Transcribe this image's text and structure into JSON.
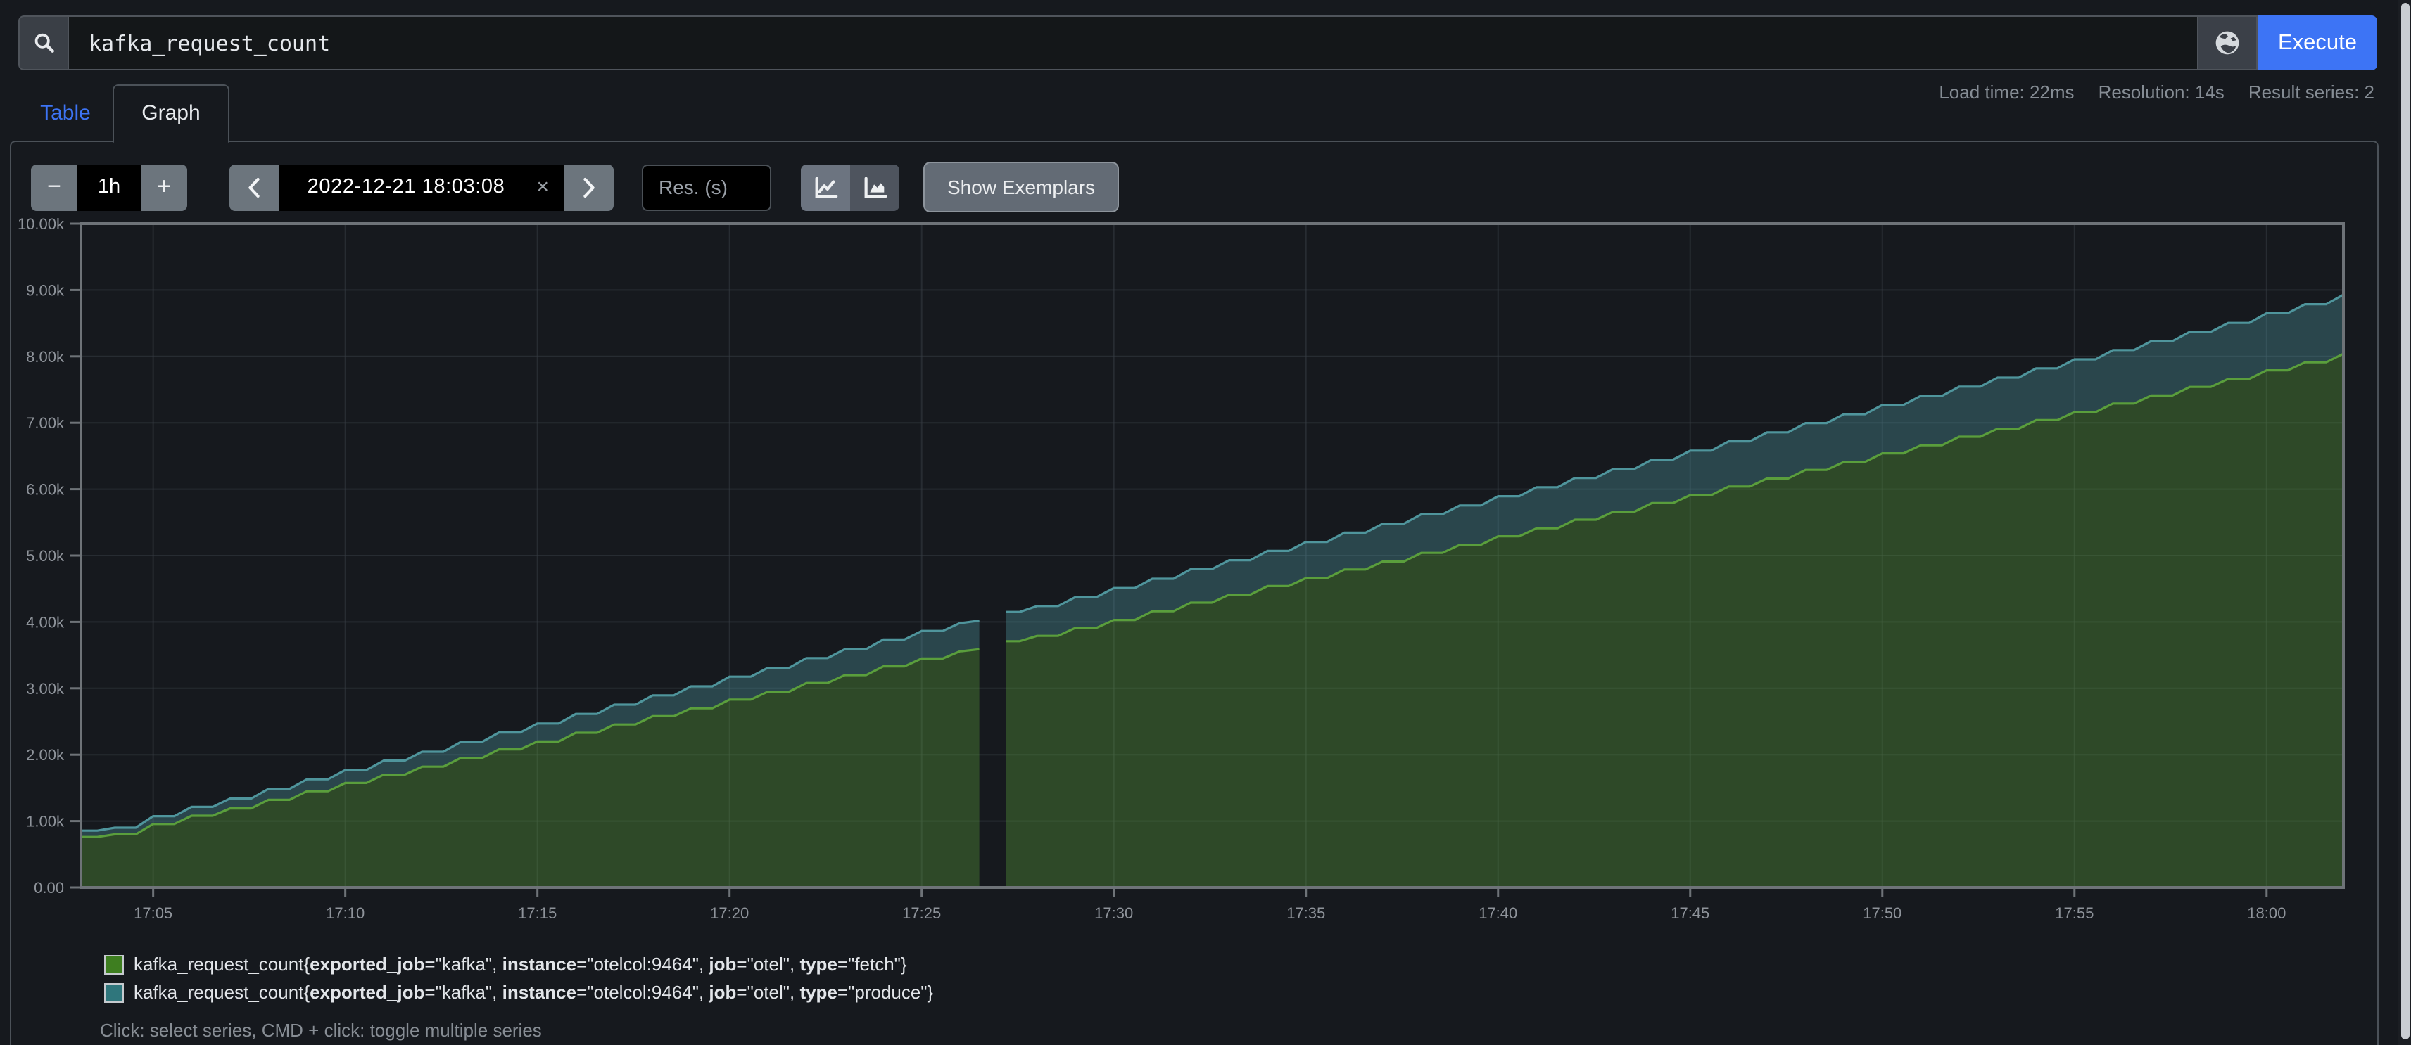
{
  "query_bar": {
    "query": "kafka_request_count",
    "execute": "Execute"
  },
  "stats": {
    "load_time": "Load time: 22ms",
    "resolution": "Resolution: 14s",
    "result_series": "Result series: 2"
  },
  "tabs": {
    "table": "Table",
    "graph": "Graph"
  },
  "toolbar": {
    "duration": {
      "decrease": "−",
      "value": "1h",
      "increase": "+"
    },
    "time": {
      "value": "2022-12-21 18:03:08",
      "clear": "×"
    },
    "resolution_placeholder": "Res. (s)",
    "show_exemplars": "Show Exemplars"
  },
  "theme": {
    "accent": "#3d74f5",
    "background": "#16191e",
    "panel_border": "#4b5158"
  },
  "chart_data": {
    "type": "area",
    "stacked": true,
    "title": "",
    "xlabel": "",
    "ylabel": "",
    "grid": true,
    "legend_position": "bottom",
    "grid_color": "#373c43",
    "border_color": "#6e7378",
    "axis_text_color": "#8e939a",
    "x_unit": "clock minutes since 00:00",
    "x_axis": {
      "min": 1023.12,
      "max": 1082.0,
      "ticks": [
        {
          "m": 1025,
          "label": "17:05"
        },
        {
          "m": 1030,
          "label": "17:10"
        },
        {
          "m": 1035,
          "label": "17:15"
        },
        {
          "m": 1040,
          "label": "17:20"
        },
        {
          "m": 1045,
          "label": "17:25"
        },
        {
          "m": 1050,
          "label": "17:30"
        },
        {
          "m": 1055,
          "label": "17:35"
        },
        {
          "m": 1060,
          "label": "17:40"
        },
        {
          "m": 1065,
          "label": "17:45"
        },
        {
          "m": 1070,
          "label": "17:50"
        },
        {
          "m": 1075,
          "label": "17:55"
        },
        {
          "m": 1080,
          "label": "18:00"
        }
      ]
    },
    "y_axis": {
      "min": 0,
      "max": 10000,
      "ticks": [
        {
          "v": 0,
          "label": "0.00"
        },
        {
          "v": 1000,
          "label": "1.00k"
        },
        {
          "v": 2000,
          "label": "2.00k"
        },
        {
          "v": 3000,
          "label": "3.00k"
        },
        {
          "v": 4000,
          "label": "4.00k"
        },
        {
          "v": 5000,
          "label": "5.00k"
        },
        {
          "v": 6000,
          "label": "6.00k"
        },
        {
          "v": 7000,
          "label": "7.00k"
        },
        {
          "v": 8000,
          "label": "8.00k"
        },
        {
          "v": 9000,
          "label": "9.00k"
        },
        {
          "v": 10000,
          "label": "10.00k"
        }
      ]
    },
    "series": [
      {
        "name": "kafka_request_count{exported_job=\"kafka\", instance=\"otelcol:9464\", job=\"otel\", type=\"fetch\"}",
        "line": "#5a9e3c",
        "fill": "rgba(90,158,60,0.37)",
        "legend_color": "#3e7e20"
      },
      {
        "name": "kafka_request_count{exported_job=\"kafka\", instance=\"otelcol:9464\", job=\"otel\", type=\"produce\"}",
        "line": "#4f959c",
        "fill": "rgba(79,149,156,0.37)",
        "legend_color": "#2f767c"
      }
    ],
    "gap": {
      "from_min": 1046.5,
      "to_min": 1047.2
    },
    "segments": [
      {
        "t": [
          1023.12,
          1024,
          1025,
          1026,
          1027,
          1028,
          1029,
          1030,
          1031,
          1032,
          1033,
          1034,
          1035,
          1036,
          1037,
          1038,
          1039,
          1040,
          1041,
          1042,
          1043,
          1044,
          1045,
          1046,
          1046.5
        ],
        "fetch": [
          760,
          800,
          955,
          1080,
          1190,
          1320,
          1450,
          1575,
          1700,
          1820,
          1950,
          2080,
          2200,
          2330,
          2455,
          2580,
          2700,
          2830,
          2950,
          3080,
          3200,
          3330,
          3450,
          3560,
          3590
        ],
        "produce": [
          95,
          100,
          120,
          135,
          150,
          165,
          180,
          195,
          210,
          225,
          240,
          255,
          270,
          285,
          300,
          315,
          330,
          345,
          360,
          375,
          390,
          405,
          415,
          425,
          430
        ]
      },
      {
        "t": [
          1047.2,
          1048,
          1049,
          1050,
          1051,
          1052,
          1053,
          1054,
          1055,
          1056,
          1057,
          1058,
          1059,
          1060,
          1061,
          1062,
          1063,
          1064,
          1065,
          1066,
          1067,
          1068,
          1069,
          1070,
          1071,
          1072,
          1073,
          1074,
          1075,
          1076,
          1077,
          1078,
          1079,
          1080,
          1081,
          1082
        ],
        "fetch": [
          3710,
          3790,
          3910,
          4030,
          4160,
          4290,
          4410,
          4540,
          4660,
          4790,
          4910,
          5040,
          5160,
          5290,
          5410,
          5540,
          5660,
          5790,
          5910,
          6040,
          6160,
          6290,
          6410,
          6540,
          6660,
          6790,
          6910,
          7040,
          7160,
          7290,
          7410,
          7540,
          7660,
          7790,
          7910,
          8040
        ],
        "produce": [
          440,
          450,
          465,
          480,
          490,
          505,
          520,
          530,
          545,
          555,
          570,
          580,
          595,
          605,
          620,
          630,
          645,
          655,
          670,
          680,
          695,
          705,
          720,
          730,
          745,
          755,
          770,
          780,
          795,
          805,
          820,
          830,
          845,
          860,
          875,
          890
        ]
      }
    ]
  },
  "legend": {
    "hint": "Click: select series, CMD + click: toggle multiple series",
    "items": [
      {
        "color": "#3e7e20",
        "parts": [
          {
            "text": "kafka_request_count{",
            "bold": false
          },
          {
            "text": "exported_job",
            "bold": true
          },
          {
            "text": "=\"kafka\", ",
            "bold": false
          },
          {
            "text": "instance",
            "bold": true
          },
          {
            "text": "=\"otelcol:9464\", ",
            "bold": false
          },
          {
            "text": "job",
            "bold": true
          },
          {
            "text": "=\"otel\", ",
            "bold": false
          },
          {
            "text": "type",
            "bold": true
          },
          {
            "text": "=\"fetch\"}",
            "bold": false
          }
        ]
      },
      {
        "color": "#2f767c",
        "parts": [
          {
            "text": "kafka_request_count{",
            "bold": false
          },
          {
            "text": "exported_job",
            "bold": true
          },
          {
            "text": "=\"kafka\", ",
            "bold": false
          },
          {
            "text": "instance",
            "bold": true
          },
          {
            "text": "=\"otelcol:9464\", ",
            "bold": false
          },
          {
            "text": "job",
            "bold": true
          },
          {
            "text": "=\"otel\", ",
            "bold": false
          },
          {
            "text": "type",
            "bold": true
          },
          {
            "text": "=\"produce\"}",
            "bold": false
          }
        ]
      }
    ]
  }
}
